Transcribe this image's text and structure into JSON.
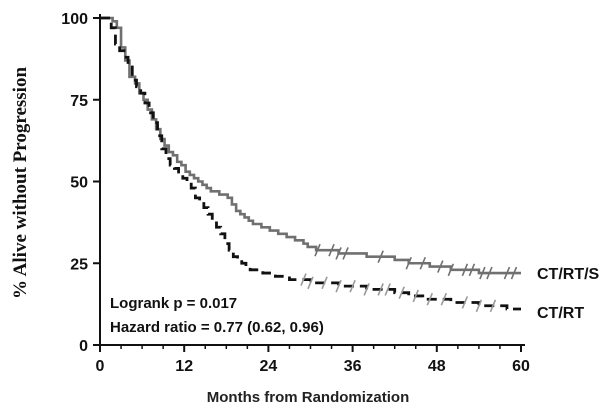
{
  "chart_data": {
    "type": "line",
    "xlabel": "Months from Randomization",
    "ylabel": "% Alive without Progression",
    "xlim": [
      0,
      60
    ],
    "ylim": [
      0,
      100
    ],
    "xticks": [
      0,
      12,
      24,
      36,
      48,
      60
    ],
    "yticks": [
      0,
      25,
      50,
      75,
      100
    ],
    "grid": false,
    "annotations": [
      "Logrank p = 0.017",
      "Hazard ratio = 0.77 (0.62, 0.96)"
    ],
    "series": [
      {
        "name": "CT/RT/S",
        "color": "#707070",
        "dash": "solid",
        "x": [
          0,
          1.2,
          1.8,
          2.4,
          3,
          3.6,
          4.2,
          5,
          5.6,
          6.2,
          6.8,
          7.4,
          8,
          8.6,
          9.2,
          9.8,
          10.4,
          11,
          11.6,
          12.2,
          12.8,
          13.4,
          14,
          14.6,
          15.2,
          15.8,
          16.4,
          17,
          17.6,
          18.2,
          18.8,
          19.4,
          20,
          20.6,
          21.2,
          21.8,
          22.4,
          23,
          23.6,
          24.2,
          24.8,
          25.4,
          26,
          26.6,
          27.2,
          27.8,
          28.4,
          29,
          29.6,
          30.2,
          30.8,
          31.4,
          32,
          33,
          34,
          35,
          36,
          37,
          38,
          39,
          40,
          41,
          42,
          43,
          44,
          45,
          46,
          47,
          48,
          49,
          50,
          51,
          52,
          53,
          54,
          56,
          58,
          60
        ],
        "y": [
          100,
          100,
          99,
          97,
          91,
          87,
          82,
          80,
          77,
          75,
          72,
          69,
          66,
          63,
          61,
          59,
          58,
          56,
          55,
          53,
          52,
          51,
          50,
          49,
          48,
          47,
          47,
          46,
          46,
          45,
          43,
          41,
          40,
          39,
          38,
          37,
          37,
          36,
          36,
          35,
          35,
          34,
          34,
          33,
          33,
          32,
          32,
          31,
          30,
          30,
          29,
          29,
          29,
          29,
          28,
          28,
          28,
          28,
          27,
          27,
          27,
          27,
          26,
          26,
          25,
          25,
          25,
          24,
          24,
          24,
          23,
          23,
          23,
          23,
          22,
          22,
          22,
          22
        ],
        "censor_x": [
          31,
          33,
          34,
          35,
          40,
          44,
          46,
          48.5,
          50,
          52,
          53,
          54.5,
          55.5,
          58,
          59
        ]
      },
      {
        "name": "CT/RT",
        "color": "#111111",
        "dash": "dashed",
        "x": [
          0,
          1,
          1.6,
          2.2,
          2.8,
          3.4,
          4,
          4.6,
          5.2,
          5.8,
          6.4,
          7,
          7.6,
          8.2,
          8.8,
          9.4,
          10,
          10.6,
          11.2,
          11.8,
          12.4,
          13,
          13.6,
          14.2,
          14.8,
          15.4,
          16,
          16.6,
          17.2,
          17.8,
          18.4,
          19,
          19.6,
          20.2,
          20.8,
          21.4,
          22,
          22.6,
          23.2,
          23.8,
          24.4,
          25,
          26,
          27,
          28,
          30,
          32,
          34,
          36,
          38,
          40,
          42,
          44,
          46,
          48,
          50,
          52,
          54,
          56,
          58,
          60
        ],
        "y": [
          100,
          100,
          97,
          92,
          90,
          88,
          85,
          81,
          79,
          77,
          74,
          71,
          68,
          64,
          60,
          57,
          55,
          54,
          52,
          51,
          50,
          48,
          45,
          44,
          42,
          40,
          38,
          36,
          34,
          31,
          29,
          27,
          26,
          25,
          24,
          23,
          23,
          23,
          22,
          22,
          22,
          21,
          21,
          20,
          20,
          19,
          19,
          18,
          18,
          17,
          17,
          16,
          15,
          14,
          14,
          13,
          13,
          12,
          12,
          11,
          11
        ],
        "censor_x": [
          29,
          30,
          32,
          34,
          36,
          38,
          40,
          41,
          43,
          45,
          47,
          49,
          52,
          54,
          56
        ]
      }
    ]
  }
}
